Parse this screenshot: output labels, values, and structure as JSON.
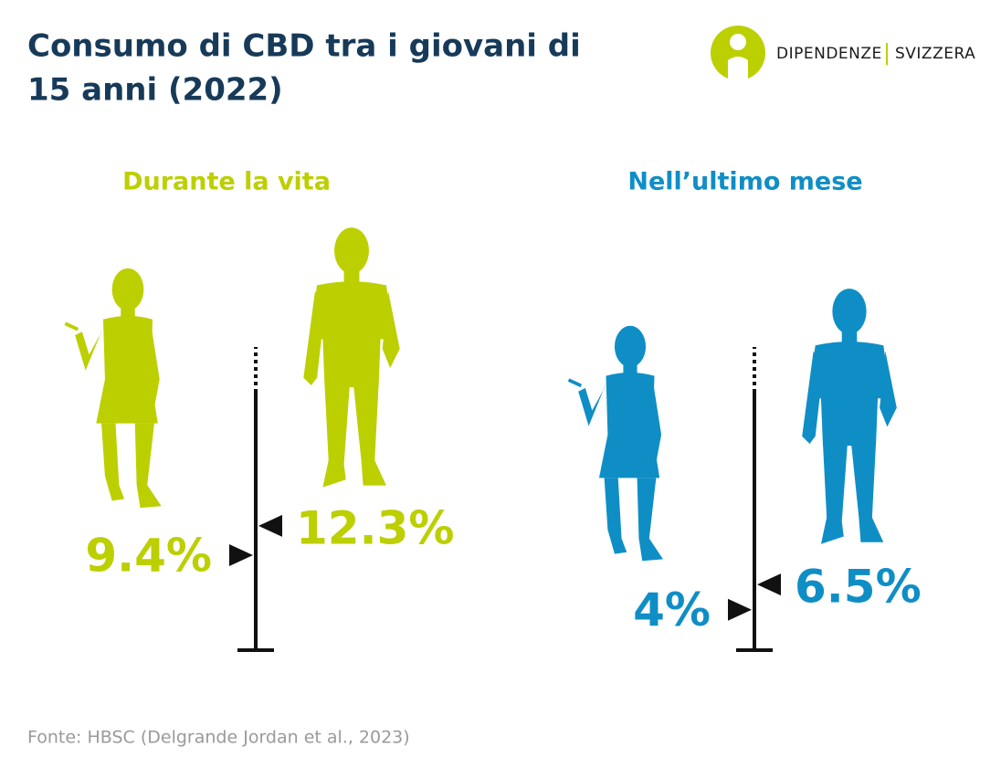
{
  "title": "Consumo di CBD tra i giovani di 15 anni (2022)",
  "logo": {
    "left": "DIPENDENZE",
    "right": "SVIZZERA"
  },
  "source": "Fonte: HBSC (Delgrande Jordan et al., 2023)",
  "chart_data": [
    {
      "type": "pictogram",
      "title": "Durante la vita",
      "color": "#bccf00",
      "values": [
        9.4,
        12.3
      ],
      "value_labels": [
        "9.4%",
        "12.3%"
      ],
      "ylim": [
        0,
        30
      ]
    },
    {
      "type": "pictogram",
      "title": "Nell’ultimo mese",
      "color": "#0f8ec6",
      "values": [
        4,
        6.5
      ],
      "value_labels": [
        "4%",
        "6.5%"
      ],
      "ylim": [
        0,
        30
      ]
    }
  ]
}
